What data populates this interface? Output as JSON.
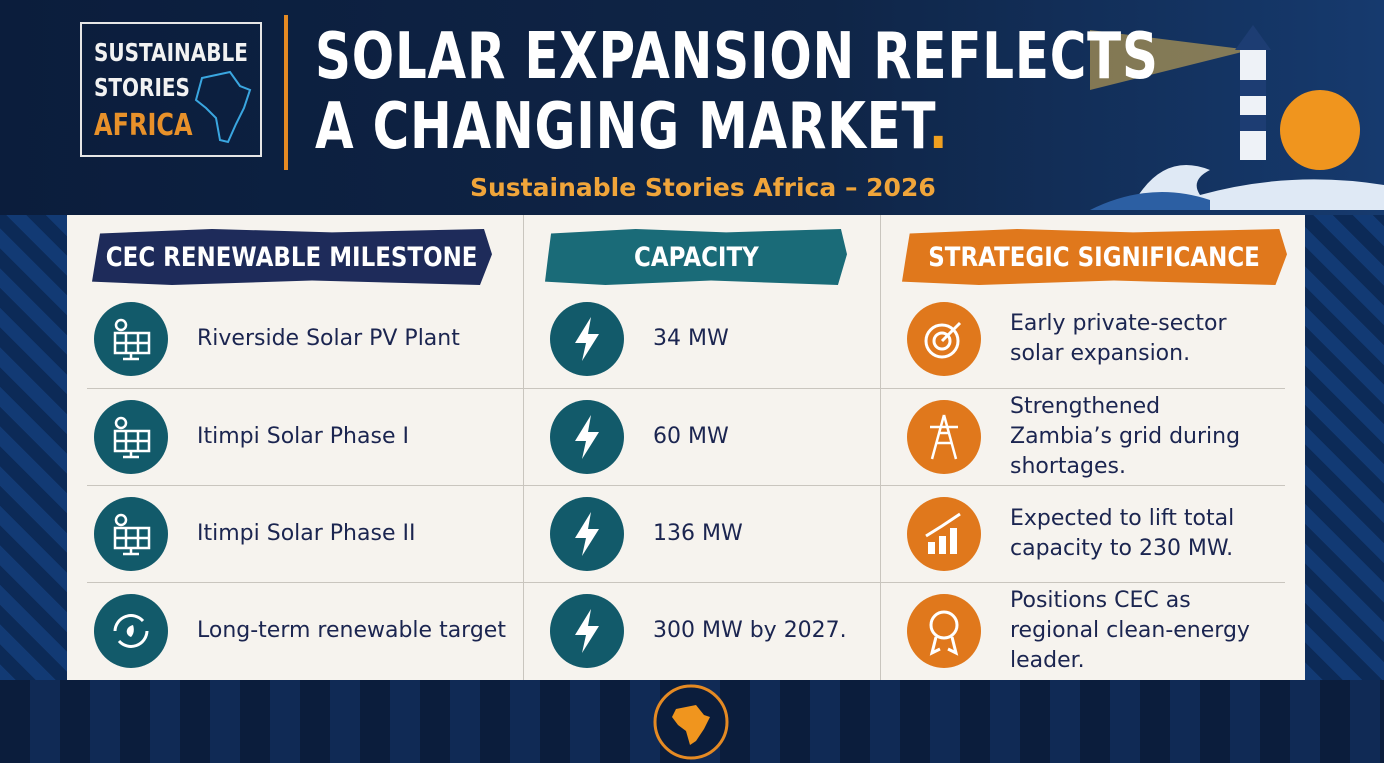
{
  "logo": {
    "line1": "SUSTAINABLE",
    "line2": "STORIES",
    "line3": "AFRICA"
  },
  "header": {
    "title_line1": "SOLAR EXPANSION REFLECTS",
    "title_line2": "A CHANGING MARKET",
    "title_period": ".",
    "subtitle": "Sustainable Stories Africa – 2026"
  },
  "table": {
    "columns": [
      "CEC RENEWABLE MILESTONE",
      "CAPACITY",
      "STRATEGIC SIGNIFICANCE"
    ],
    "rows": [
      [
        "Riverside Solar PV Plant",
        "34 MW",
        "Early private-sector solar expansion."
      ],
      [
        "Itimpi Solar Phase I",
        "60 MW",
        "Strengthened Zambia’s grid during shortages."
      ],
      [
        "Itimpi Solar Phase II",
        "136 MW",
        "Expected to lift total capacity to 230 MW."
      ],
      [
        "Long-term renewable target",
        "300 MW by 2027.",
        "Positions CEC as regional clean-energy leader."
      ]
    ]
  }
}
